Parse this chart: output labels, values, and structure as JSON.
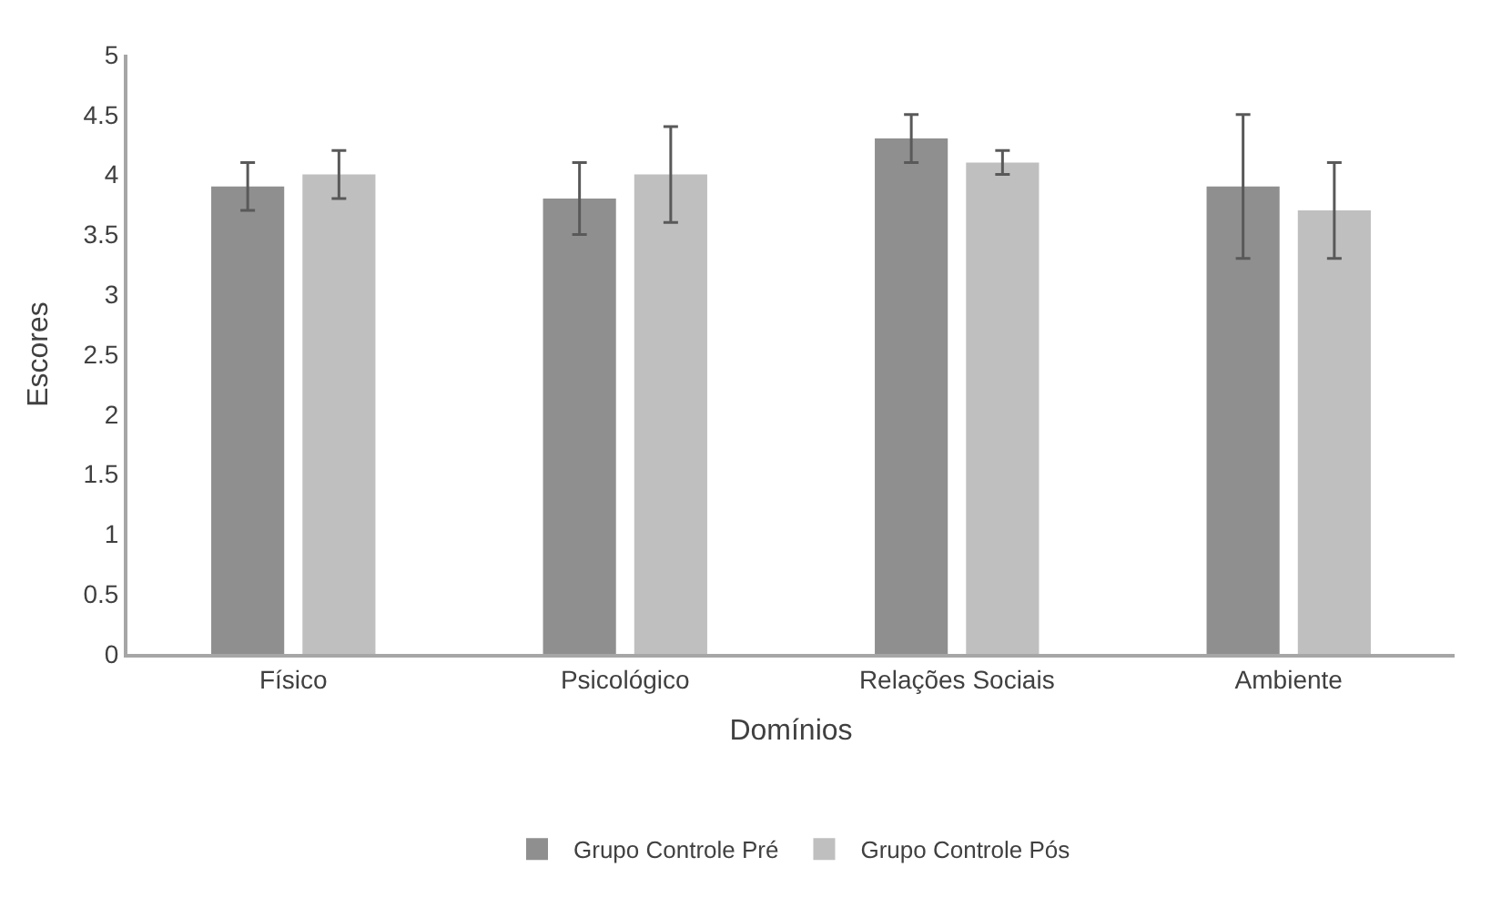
{
  "chart_data": {
    "type": "bar",
    "xlabel": "Domínios",
    "ylabel": "Escores",
    "categories": [
      "Físico",
      "Psicológico",
      "Relações Sociais",
      "Ambiente"
    ],
    "series": [
      {
        "name": "Grupo Controle Pré",
        "color": "#8f8f8f",
        "values": [
          3.9,
          3.8,
          4.3,
          3.9
        ],
        "errors": [
          0.2,
          0.3,
          0.2,
          0.6
        ]
      },
      {
        "name": "Grupo Controle Pós",
        "color": "#bfbfbf",
        "values": [
          4.0,
          4.0,
          4.1,
          3.7
        ],
        "errors": [
          0.2,
          0.4,
          0.1,
          0.4
        ]
      }
    ],
    "ylim": [
      0,
      5
    ],
    "yticks": [
      0,
      0.5,
      1,
      1.5,
      2,
      2.5,
      3,
      3.5,
      4,
      4.5,
      5
    ],
    "legend": "bottom"
  }
}
